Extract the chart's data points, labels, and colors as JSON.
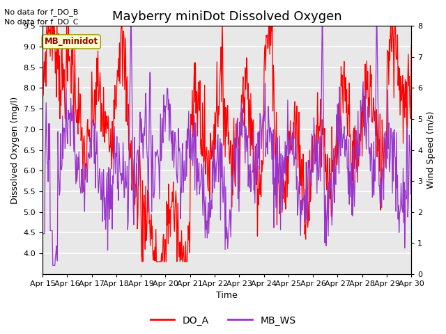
{
  "title": "Mayberry miniDot Dissolved Oxygen",
  "xlabel": "Time",
  "ylabel_left": "Dissolved Oxygen (mg/l)",
  "ylabel_right": "Wind Speed (m/s)",
  "note1": "No data for f_DO_B",
  "note2": "No data for f_DO_C",
  "sensor_label": "MB_minidot",
  "ylim_left": [
    3.5,
    9.5
  ],
  "ylim_right": [
    0.0,
    8.0
  ],
  "yticks_left": [
    4.0,
    4.5,
    5.0,
    5.5,
    6.0,
    6.5,
    7.0,
    7.5,
    8.0,
    8.5,
    9.0,
    9.5
  ],
  "yticks_right": [
    0.0,
    1.0,
    2.0,
    3.0,
    4.0,
    5.0,
    6.0,
    7.0,
    8.0
  ],
  "xtick_labels": [
    "Apr 15",
    "Apr 16",
    "Apr 17",
    "Apr 18",
    "Apr 19",
    "Apr 20",
    "Apr 21",
    "Apr 22",
    "Apr 23",
    "Apr 24",
    "Apr 25",
    "Apr 26",
    "Apr 27",
    "Apr 28",
    "Apr 29",
    "Apr 30"
  ],
  "do_color": "#ff0000",
  "ws_color": "#9933cc",
  "legend_do": "DO_A",
  "legend_ws": "MB_WS",
  "fig_bg": "#ffffff",
  "plot_bg": "#e8e8e8",
  "grid_color": "#ffffff",
  "title_fontsize": 13,
  "label_fontsize": 9,
  "tick_fontsize": 8,
  "note_fontsize": 8
}
